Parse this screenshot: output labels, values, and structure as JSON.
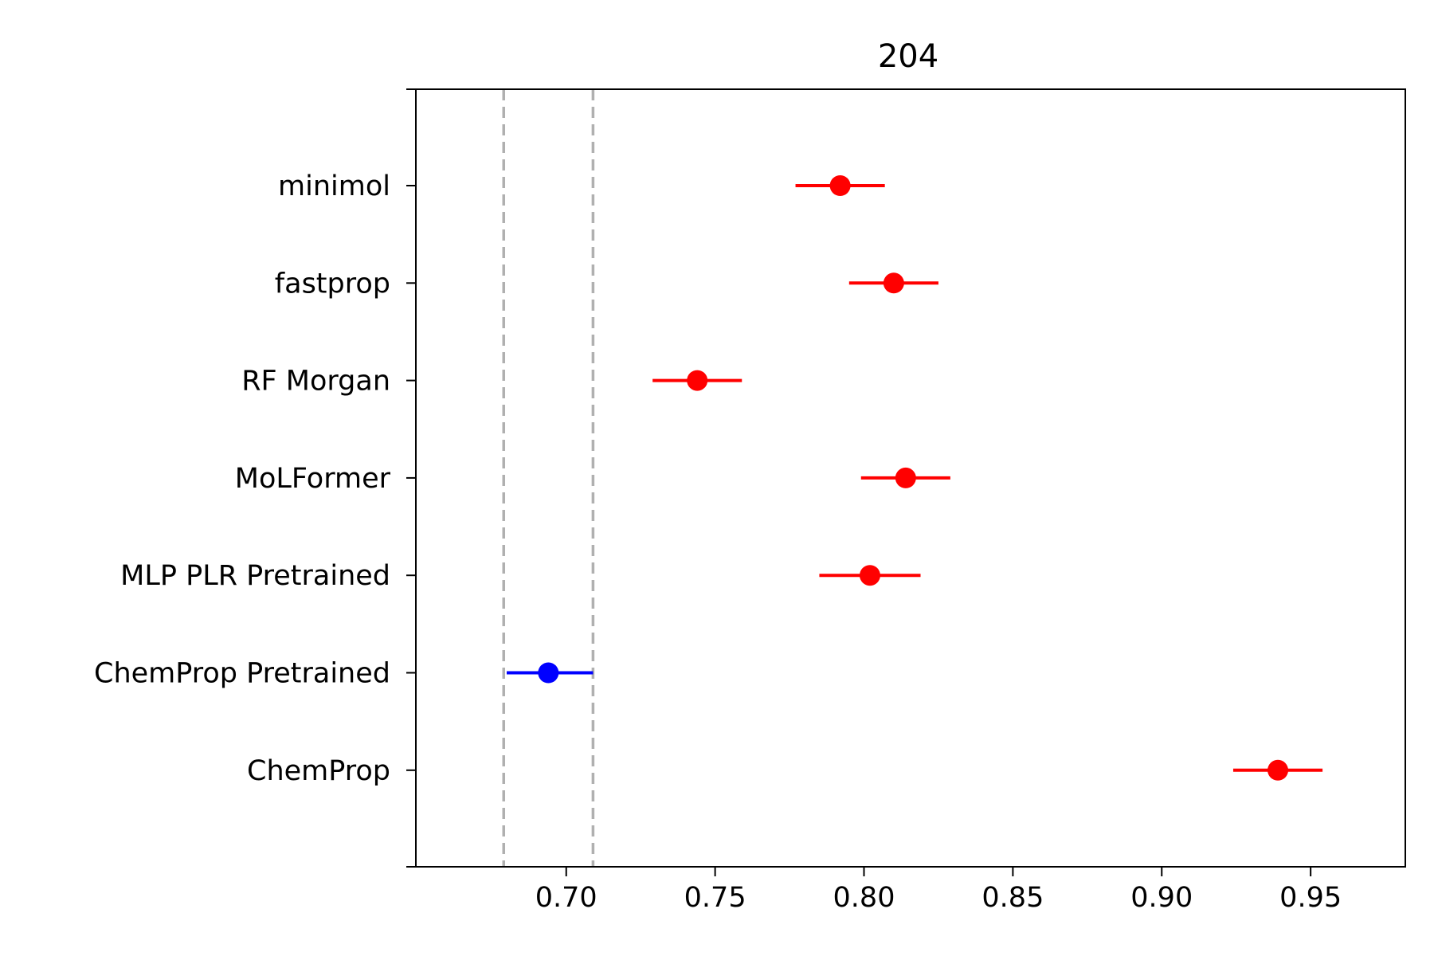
{
  "chart_data": {
    "type": "scatter",
    "title": "204",
    "xlabel": "",
    "ylabel": "",
    "xlim": [
      0.6495,
      0.9818
    ],
    "x_ticks": [
      0.7,
      0.75,
      0.8,
      0.85,
      0.9,
      0.95
    ],
    "x_tick_labels": [
      "0.70",
      "0.75",
      "0.80",
      "0.85",
      "0.90",
      "0.95"
    ],
    "categories": [
      "minimol",
      "fastprop",
      "RF Morgan",
      "MoLFormer",
      "MLP PLR Pretrained",
      "ChemProp Pretrained",
      "ChemProp"
    ],
    "points": [
      {
        "label": "minimol",
        "value": 0.792,
        "lower": 0.777,
        "upper": 0.807,
        "color": "#ff0000"
      },
      {
        "label": "fastprop",
        "value": 0.81,
        "lower": 0.795,
        "upper": 0.825,
        "color": "#ff0000"
      },
      {
        "label": "RF Morgan",
        "value": 0.744,
        "lower": 0.729,
        "upper": 0.759,
        "color": "#ff0000"
      },
      {
        "label": "MoLFormer",
        "value": 0.814,
        "lower": 0.799,
        "upper": 0.829,
        "color": "#ff0000"
      },
      {
        "label": "MLP PLR Pretrained",
        "value": 0.802,
        "lower": 0.785,
        "upper": 0.819,
        "color": "#ff0000"
      },
      {
        "label": "ChemProp Pretrained",
        "value": 0.694,
        "lower": 0.68,
        "upper": 0.709,
        "color": "#0000ff"
      },
      {
        "label": "ChemProp",
        "value": 0.939,
        "lower": 0.924,
        "upper": 0.954,
        "color": "#ff0000"
      }
    ],
    "reference_lines": [
      0.679,
      0.709
    ],
    "reference_line_color": "#b0b0b0",
    "grid": false,
    "legend": false
  }
}
